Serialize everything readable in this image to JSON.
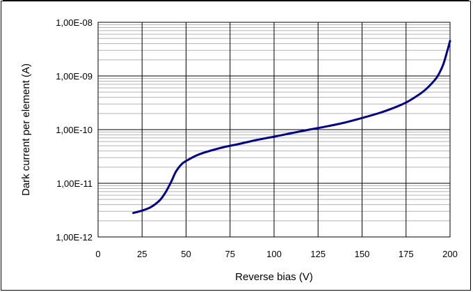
{
  "chart_data": {
    "type": "line",
    "title": "",
    "xlabel": "Reverse bias (V)",
    "ylabel": "Dark current per element (A)",
    "xlim": [
      0,
      200
    ],
    "ylim": [
      1e-12,
      1e-08
    ],
    "yscale": "log",
    "x_ticks": [
      0,
      25,
      50,
      75,
      100,
      125,
      150,
      175,
      200
    ],
    "x_tick_labels": [
      "0",
      "25",
      "50",
      "75",
      "100",
      "125",
      "150",
      "175",
      "200"
    ],
    "y_ticks": [
      1e-12,
      1e-11,
      1e-10,
      1e-09,
      1e-08
    ],
    "y_tick_labels": [
      "1,00E-12",
      "1,00E-11",
      "1,00E-10",
      "1,00E-09",
      "1,00E-08"
    ],
    "grid": true,
    "line_color": "#00008b",
    "series": [
      {
        "name": "",
        "x": [
          20,
          25,
          30,
          35,
          38,
          40,
          42,
          44,
          46,
          48,
          50,
          55,
          60,
          70,
          80,
          90,
          100,
          110,
          120,
          130,
          140,
          150,
          160,
          170,
          175,
          180,
          185,
          190,
          193,
          196,
          198,
          200
        ],
        "y": [
          2.8e-12,
          3.1e-12,
          3.6e-12,
          4.8e-12,
          6.5e-12,
          8.5e-12,
          1.15e-11,
          1.6e-11,
          2e-11,
          2.35e-11,
          2.6e-11,
          3.2e-11,
          3.7e-11,
          4.6e-11,
          5.4e-11,
          6.4e-11,
          7.4e-11,
          8.6e-11,
          1e-10,
          1.15e-10,
          1.35e-10,
          1.65e-10,
          2.05e-10,
          2.7e-10,
          3.2e-10,
          4e-10,
          5.2e-10,
          7.5e-10,
          1e-09,
          1.6e-09,
          2.6e-09,
          4.5e-09
        ]
      }
    ]
  }
}
